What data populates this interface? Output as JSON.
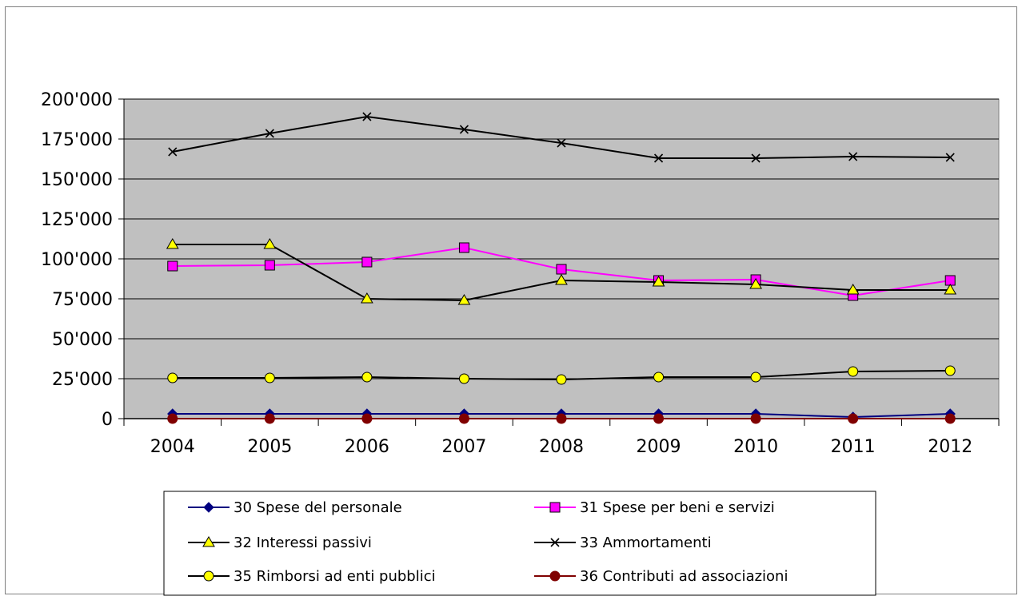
{
  "chart_data": {
    "type": "line",
    "categories": [
      "2004",
      "2005",
      "2006",
      "2007",
      "2008",
      "2009",
      "2010",
      "2011",
      "2012"
    ],
    "ylim": [
      0,
      200000
    ],
    "yticks": [
      0,
      25000,
      50000,
      75000,
      100000,
      125000,
      150000,
      175000,
      200000
    ],
    "ytick_labels": [
      "0",
      "25'000",
      "50'000",
      "75'000",
      "100'000",
      "125'000",
      "150'000",
      "175'000",
      "200'000"
    ],
    "plot_background": "#c0c0c0",
    "grid": true,
    "legend_position": "bottom",
    "series": [
      {
        "name": "30 Spese del personale",
        "color": "#000080",
        "marker": "diamond",
        "marker_fill": "#000080",
        "values": [
          3000,
          3000,
          3000,
          3000,
          3000,
          3000,
          3000,
          1000,
          3000
        ]
      },
      {
        "name": "31 Spese per beni e servizi",
        "color": "#ff00ff",
        "marker": "square",
        "marker_fill": "#ff00ff",
        "values": [
          95500,
          96000,
          98000,
          107000,
          93500,
          86500,
          87000,
          77000,
          86500
        ]
      },
      {
        "name": "32 Interessi passivi",
        "color": "#000000",
        "marker": "triangle",
        "marker_fill": "#ffff00",
        "values": [
          109000,
          109000,
          75000,
          74000,
          86500,
          85500,
          84000,
          80500,
          80500
        ]
      },
      {
        "name": "33 Ammortamenti",
        "color": "#000000",
        "marker": "x",
        "marker_fill": "#000000",
        "values": [
          167000,
          178500,
          189000,
          181000,
          172500,
          163000,
          163000,
          164000,
          163500
        ]
      },
      {
        "name": "35 Rimborsi ad enti pubblici",
        "color": "#000000",
        "marker": "circle",
        "marker_fill": "#ffff00",
        "values": [
          25500,
          25500,
          26000,
          25000,
          24500,
          26000,
          26000,
          29500,
          30000
        ]
      },
      {
        "name": "36 Contributi ad associazioni",
        "color": "#800000",
        "marker": "circle",
        "marker_fill": "#800000",
        "values": [
          0,
          0,
          0,
          0,
          0,
          0,
          0,
          0,
          0
        ]
      }
    ]
  }
}
